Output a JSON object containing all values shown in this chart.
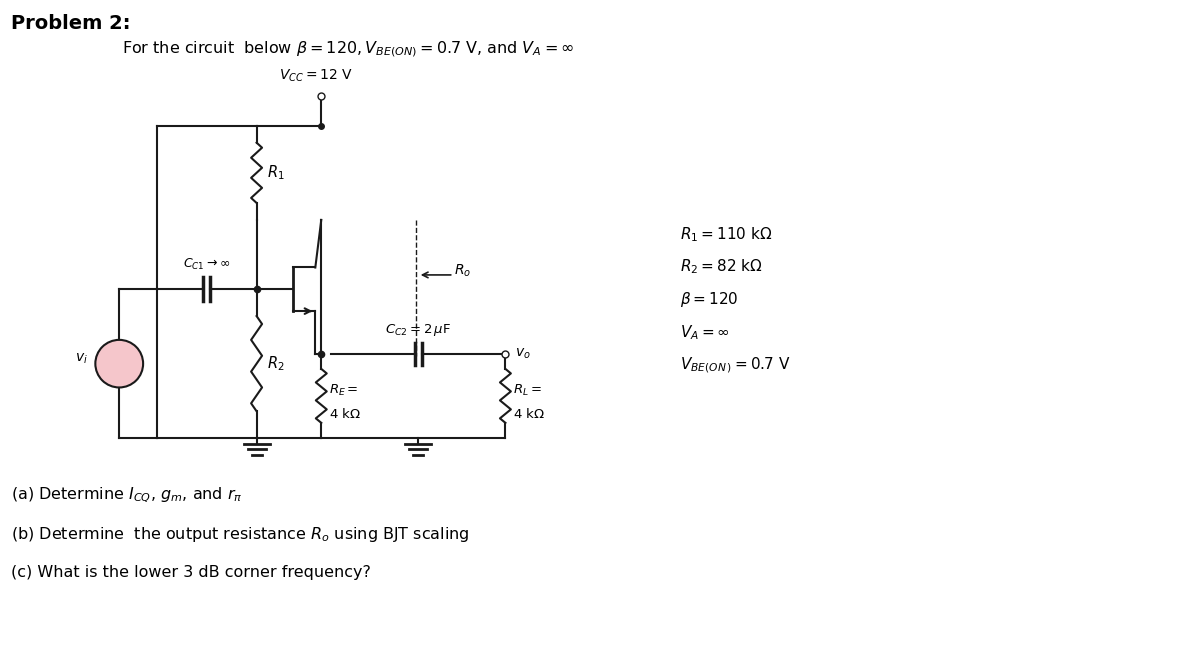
{
  "title": "Problem 2:",
  "subtitle": "For the circuit  below $\\beta = 120, V_{BE(ON)} = 0.7$ V, and $V_A = \\infty$",
  "vcc_label": "$V_{CC} = 12$ V",
  "params": [
    "$R_1 = 110$ k$\\Omega$",
    "$R_2 = 82$ k$\\Omega$",
    "$\\beta = 120$",
    "$V_A = \\infty$",
    "$V_{BE(ON\\,)} = 0.7$ V"
  ],
  "questions": [
    "(a) Determine $I_{CQ}$, $g_m$, and $r_{\\pi}$",
    "(b) Determine  the output resistance $R_o$ using BJT scaling",
    "(c) What is the lower 3 dB corner frequency?"
  ],
  "bg_color": "#ffffff",
  "lc": "#1a1a1a"
}
